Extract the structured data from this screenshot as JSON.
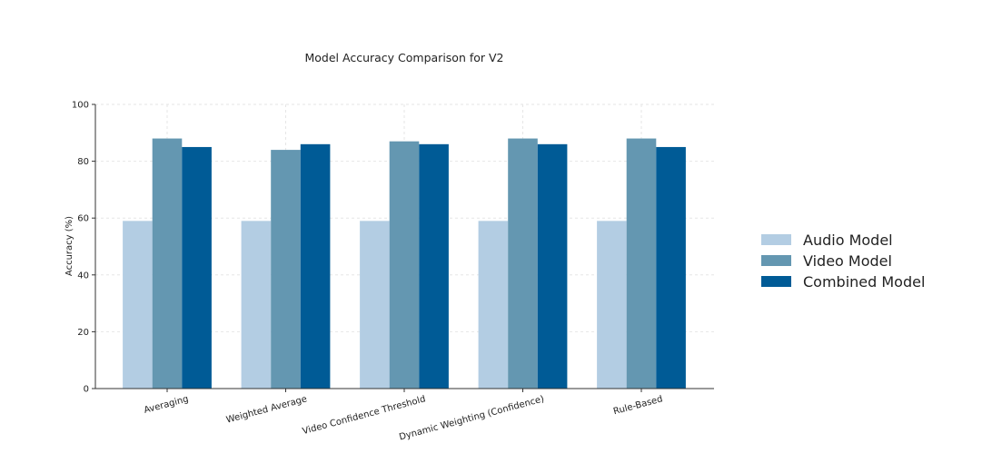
{
  "chart_data": {
    "type": "bar",
    "title": "Model Accuracy Comparison for V2",
    "xlabel": "",
    "ylabel": "Accuracy (%)",
    "ylim": [
      0,
      100
    ],
    "yticks": [
      0,
      20,
      40,
      60,
      80,
      100
    ],
    "grid": true,
    "legend_position": "right",
    "categories": [
      "Averaging",
      "Weighted Average",
      "Video Confidence Threshold",
      "Dynamic Weighting (Confidence)",
      "Rule-Based"
    ],
    "series": [
      {
        "name": "Audio Model",
        "color": "#b3cde3",
        "values": [
          59,
          59,
          59,
          59,
          59
        ]
      },
      {
        "name": "Video Model",
        "color": "#6497b1",
        "values": [
          88,
          84,
          87,
          88,
          88
        ]
      },
      {
        "name": "Combined Model",
        "color": "#005b96",
        "values": [
          85,
          86,
          86,
          86,
          85
        ]
      }
    ]
  }
}
